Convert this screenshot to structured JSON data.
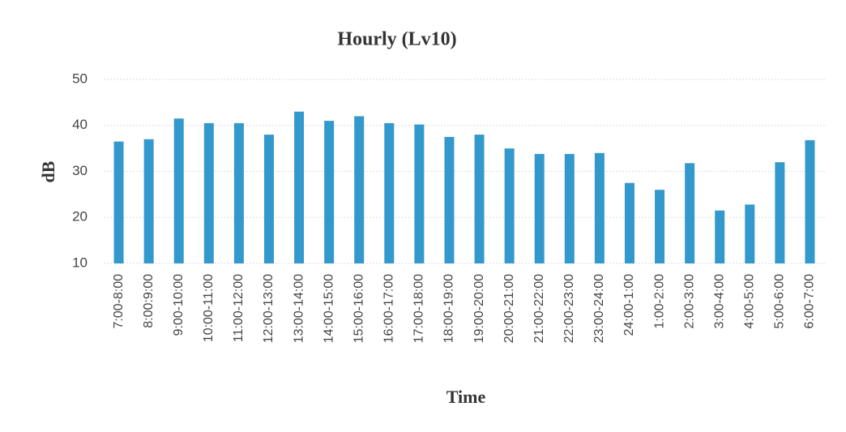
{
  "chart_data": {
    "type": "bar",
    "title": "Hourly (Lv10)",
    "xlabel": "Time",
    "ylabel": "dB",
    "categories": [
      "7:00-8:00",
      "8:00:9:00",
      "9:00-10:00",
      "10:00-11:00",
      "11:00-12:00",
      "12:00-13:00",
      "13:00-14:00",
      "14:00-15:00",
      "15:00-16:00",
      "16:00-17:00",
      "17:00-18:00",
      "18:00-19:00",
      "19:00-20:00",
      "20:00-21:00",
      "21:00-22:00",
      "22:00-23:00",
      "23:00-24:00",
      "24:00-1:00",
      "1:00-2:00",
      "2:00-3:00",
      "3:00-4:00",
      "4:00-5:00",
      "5:00-6:00",
      "6:00-7:00"
    ],
    "values": [
      36.5,
      37,
      41.5,
      40.5,
      40.5,
      38,
      43,
      41,
      42,
      40.5,
      40.2,
      37.5,
      38,
      35,
      33.8,
      33.8,
      34,
      27.5,
      26,
      31.8,
      21.5,
      22.8,
      32,
      36.8
    ],
    "color": "#3399cc",
    "ylim": [
      10,
      50
    ],
    "yticks": [
      10,
      20,
      30,
      40,
      50
    ],
    "grid": true
  }
}
